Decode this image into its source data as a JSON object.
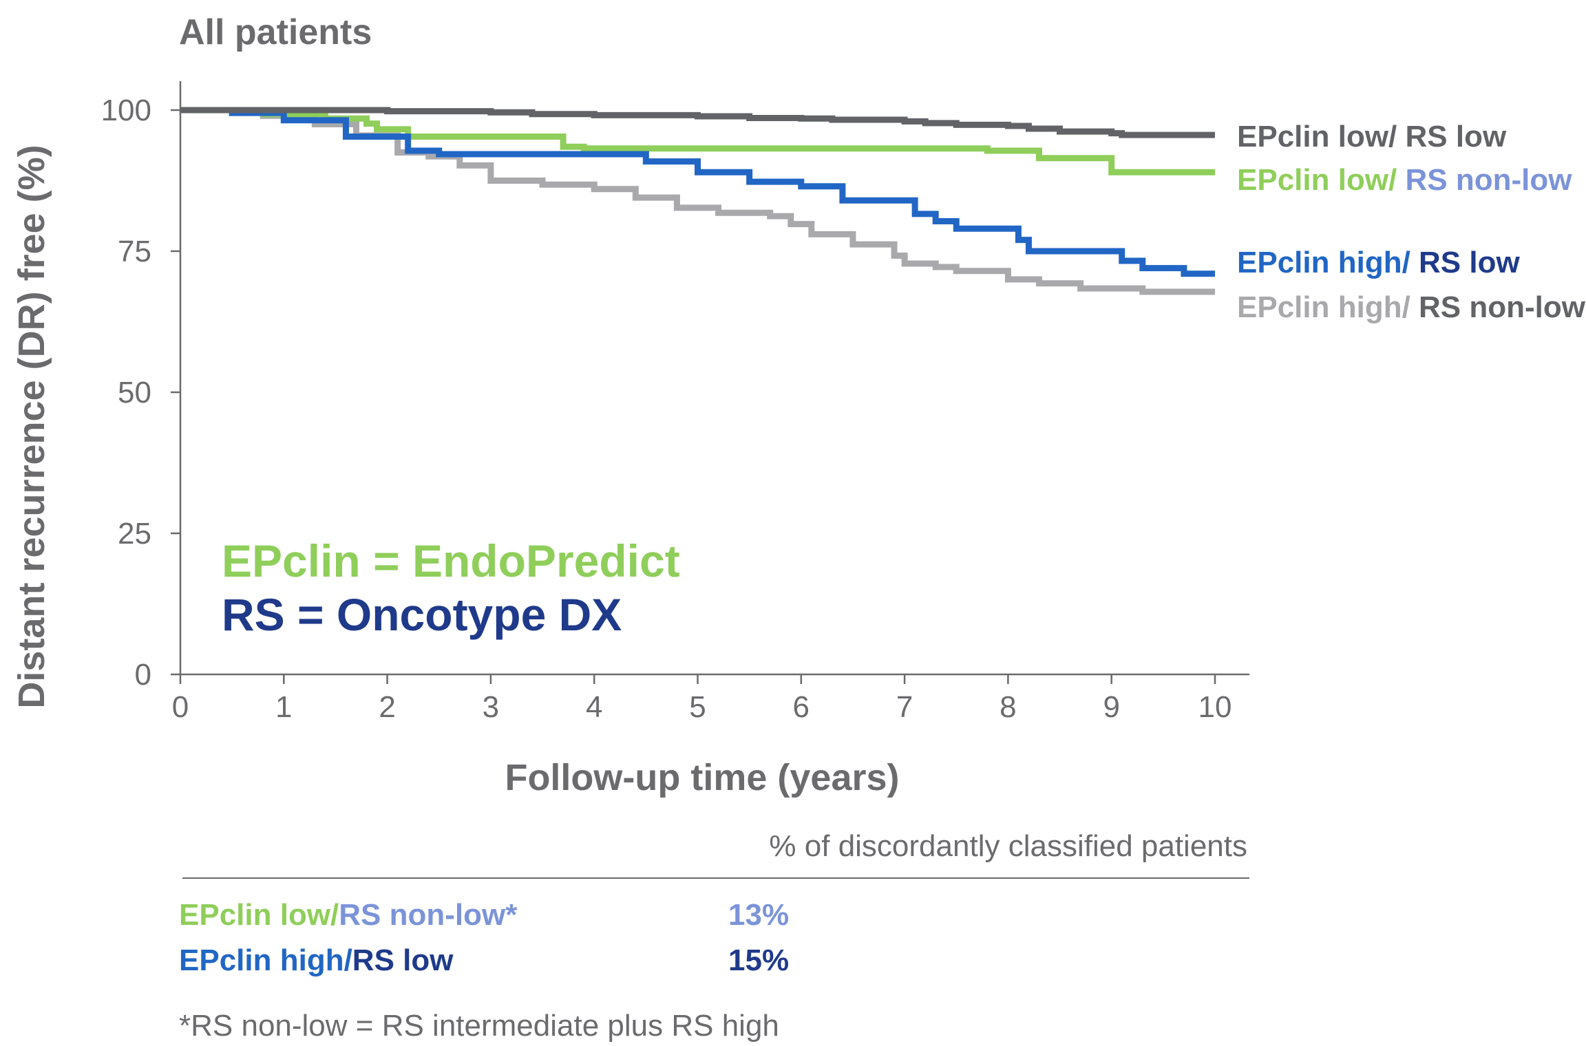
{
  "colors": {
    "epclin_low": "#8fce5a",
    "epclin_high": "#2166c4",
    "rs_low": "#1f3a8a",
    "rs_nonlow": "#7b93d8",
    "dark_gray": "#626367",
    "light_gray": "#a9a9ac",
    "axis": "#6a6a6a",
    "text_gray": "#6b6b6e"
  },
  "chart_data": {
    "type": "line",
    "title": "All patients",
    "xlabel": "Follow-up time (years)",
    "ylabel": "Distant recurrence (DR) free (%)",
    "xlim": [
      0,
      10
    ],
    "ylim": [
      0,
      100
    ],
    "x_ticks": [
      "0",
      "1",
      "2",
      "3",
      "4",
      "5",
      "6",
      "7",
      "8",
      "9",
      "10"
    ],
    "y_ticks": [
      "0",
      "25",
      "50",
      "75",
      "100"
    ],
    "step": true,
    "series": [
      {
        "key": "low_low",
        "color": "#626367",
        "label_parts": [
          {
            "text": "EPclin low/ ",
            "color": "#626367"
          },
          {
            "text": "RS low",
            "color": "#626367"
          }
        ],
        "points": [
          [
            0,
            100
          ],
          [
            1,
            100
          ],
          [
            2,
            99.8
          ],
          [
            3,
            99.6
          ],
          [
            3.4,
            99.3
          ],
          [
            4,
            99.1
          ],
          [
            5,
            98.9
          ],
          [
            5.5,
            98.6
          ],
          [
            6,
            98.5
          ],
          [
            6.3,
            98.3
          ],
          [
            7,
            98.0
          ],
          [
            7.2,
            97.7
          ],
          [
            7.5,
            97.4
          ],
          [
            8,
            97.2
          ],
          [
            8.2,
            96.7
          ],
          [
            8.5,
            96.2
          ],
          [
            9,
            95.9
          ],
          [
            9.1,
            95.6
          ],
          [
            10,
            95.6
          ]
        ]
      },
      {
        "key": "low_nonlow",
        "color": "#8fce5a",
        "label_parts": [
          {
            "text": "EPclin low/ ",
            "color": "#8fce5a"
          },
          {
            "text": "RS non-low",
            "color": "#7b93d8"
          }
        ],
        "points": [
          [
            0,
            100
          ],
          [
            0.8,
            99.3
          ],
          [
            1.4,
            98.5
          ],
          [
            1.8,
            97.6
          ],
          [
            1.9,
            96.6
          ],
          [
            2.2,
            95.3
          ],
          [
            3.7,
            93.5
          ],
          [
            3.9,
            93.2
          ],
          [
            7.8,
            92.8
          ],
          [
            8.3,
            91.5
          ],
          [
            9.0,
            89.0
          ],
          [
            10,
            89.0
          ]
        ]
      },
      {
        "key": "high_low",
        "color": "#2166c4",
        "label_parts": [
          {
            "text": "EPclin high/ ",
            "color": "#2166c4"
          },
          {
            "text": "RS low",
            "color": "#1f3a8a"
          }
        ],
        "points": [
          [
            0,
            100
          ],
          [
            0.5,
            99.5
          ],
          [
            1.0,
            98.2
          ],
          [
            1.6,
            95.3
          ],
          [
            2.2,
            92.8
          ],
          [
            2.5,
            92.2
          ],
          [
            4.5,
            90.9
          ],
          [
            5.0,
            89.0
          ],
          [
            5.5,
            87.3
          ],
          [
            6.0,
            86.5
          ],
          [
            6.4,
            84.0
          ],
          [
            7.1,
            81.6
          ],
          [
            7.3,
            80.3
          ],
          [
            7.5,
            79.0
          ],
          [
            8.1,
            77.0
          ],
          [
            8.2,
            75.0
          ],
          [
            9.1,
            73.3
          ],
          [
            9.3,
            72.0
          ],
          [
            9.7,
            71.0
          ],
          [
            10,
            71.0
          ]
        ]
      },
      {
        "key": "high_nonlow",
        "color": "#a9a9ac",
        "label_parts": [
          {
            "text": "EPclin high/ ",
            "color": "#a9a9ac"
          },
          {
            "text": "RS non-low",
            "color": "#626367"
          }
        ],
        "points": [
          [
            0,
            100
          ],
          [
            0.8,
            99.0
          ],
          [
            1.3,
            97.5
          ],
          [
            1.7,
            95.5
          ],
          [
            2.1,
            92.5
          ],
          [
            2.4,
            91.8
          ],
          [
            2.7,
            90.2
          ],
          [
            3.0,
            87.5
          ],
          [
            3.5,
            86.8
          ],
          [
            4.0,
            86.0
          ],
          [
            4.4,
            84.5
          ],
          [
            4.8,
            82.7
          ],
          [
            5.2,
            81.8
          ],
          [
            5.7,
            81.2
          ],
          [
            5.9,
            79.8
          ],
          [
            6.1,
            78.0
          ],
          [
            6.5,
            76.2
          ],
          [
            6.9,
            74.2
          ],
          [
            7.0,
            72.8
          ],
          [
            7.3,
            72.2
          ],
          [
            7.5,
            71.5
          ],
          [
            8.0,
            70.0
          ],
          [
            8.3,
            69.3
          ],
          [
            8.7,
            68.4
          ],
          [
            9.3,
            67.8
          ],
          [
            10,
            67.8
          ]
        ]
      }
    ],
    "annotation": {
      "line1": "EPclin = EndoPredict",
      "line2": "RS = Oncotype DX"
    }
  },
  "footer": {
    "header": "% of discordantly classified patients",
    "rows": [
      {
        "label_part1": "EPclin low/",
        "label_part2": "RS non-low*",
        "value": "13%"
      },
      {
        "label_part1": "EPclin high/",
        "label_part2": "RS low",
        "value": "15%"
      }
    ],
    "note": "*RS non-low = RS intermediate plus RS high"
  }
}
